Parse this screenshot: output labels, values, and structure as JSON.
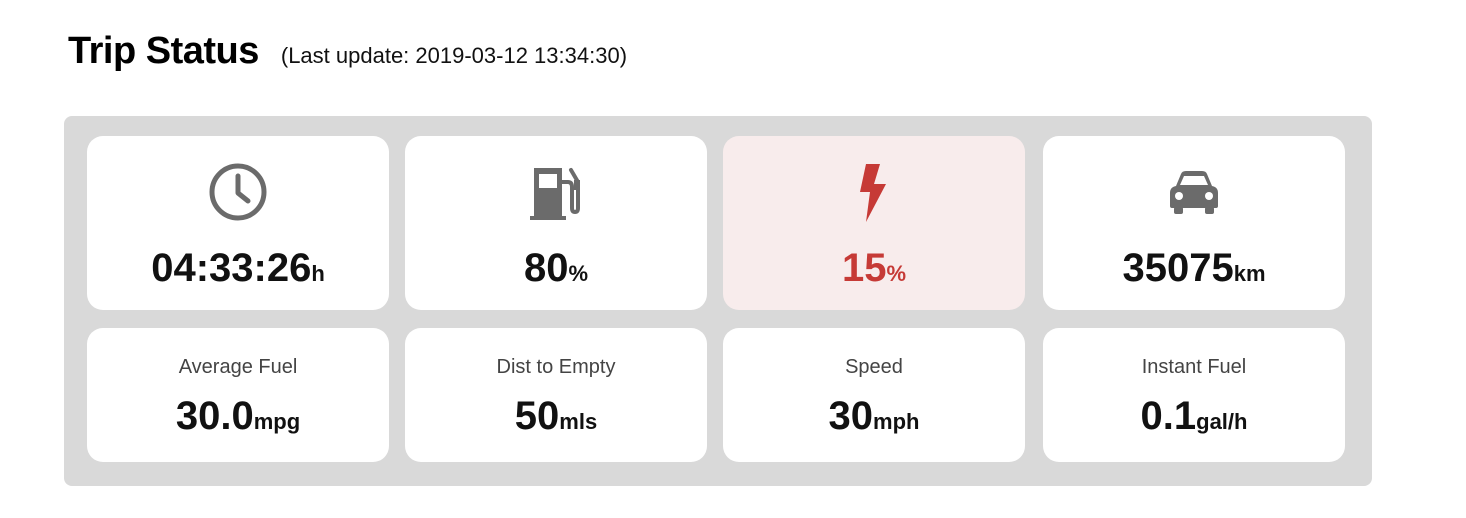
{
  "header": {
    "title": "Trip Status",
    "last_update": "(Last update: 2019-03-12 13:34:30)"
  },
  "colors": {
    "panel_background": "#d9d9d9",
    "card_background": "#ffffff",
    "alert_background": "#f8ecec",
    "alert_text": "#c63a36",
    "icon_gray": "#6b6b6b"
  },
  "top_cards": [
    {
      "icon": "clock-icon",
      "value": "04:33:26",
      "unit": "h"
    },
    {
      "icon": "fuel-pump-icon",
      "value": "80",
      "unit": "%"
    },
    {
      "icon": "lightning-bolt-icon",
      "value": "15",
      "unit": "%",
      "alert": true
    },
    {
      "icon": "car-icon",
      "value": "35075",
      "unit": "km"
    }
  ],
  "bottom_cards": [
    {
      "label": "Average Fuel",
      "value": "30.0",
      "unit": "mpg"
    },
    {
      "label": "Dist to Empty",
      "value": "50",
      "unit": "mls"
    },
    {
      "label": "Speed",
      "value": "30",
      "unit": "mph"
    },
    {
      "label": "Instant Fuel",
      "value": "0.1",
      "unit": "gal/h"
    }
  ]
}
